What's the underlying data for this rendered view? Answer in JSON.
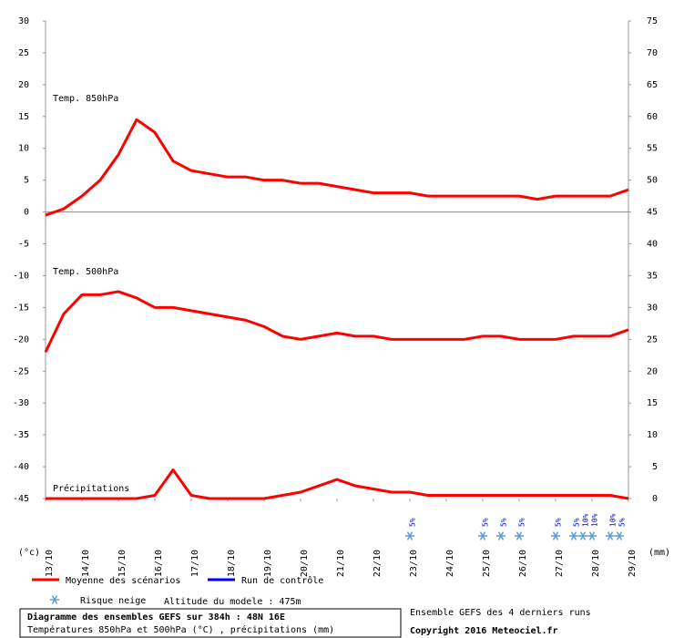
{
  "chart_data": {
    "type": "line",
    "ylabel": "(°c)",
    "y2label": "(mm)",
    "xlim": [
      0,
      384
    ],
    "xticks": [
      {
        "value": 0,
        "label": "13/10"
      },
      {
        "value": 24,
        "label": "14/10"
      },
      {
        "value": 48,
        "label": "15/10"
      },
      {
        "value": 72,
        "label": "16/10"
      },
      {
        "value": 96,
        "label": "17/10"
      },
      {
        "value": 120,
        "label": "18/10"
      },
      {
        "value": 144,
        "label": "19/10"
      },
      {
        "value": 168,
        "label": "20/10"
      },
      {
        "value": 192,
        "label": "21/10"
      },
      {
        "value": 216,
        "label": "22/10"
      },
      {
        "value": 240,
        "label": "23/10"
      },
      {
        "value": 264,
        "label": "24/10"
      },
      {
        "value": 288,
        "label": "25/10"
      },
      {
        "value": 312,
        "label": "26/10"
      },
      {
        "value": 336,
        "label": "27/10"
      },
      {
        "value": 360,
        "label": "28/10"
      },
      {
        "value": 384,
        "label": "29/10"
      }
    ],
    "ylim": [
      -45,
      30
    ],
    "yticks": [
      30,
      25,
      20,
      15,
      10,
      5,
      0,
      -5,
      -10,
      -15,
      -20,
      -25,
      -30,
      -35,
      -40,
      -45
    ],
    "y2lim": [
      0,
      75
    ],
    "y2ticks": [
      75,
      70,
      65,
      60,
      55,
      50,
      45,
      40,
      35,
      30,
      25,
      20,
      15,
      10,
      5,
      0
    ],
    "x": [
      0,
      12,
      24,
      36,
      48,
      60,
      72,
      84,
      96,
      108,
      120,
      132,
      144,
      156,
      168,
      180,
      192,
      204,
      216,
      228,
      240,
      252,
      264,
      276,
      288,
      300,
      312,
      324,
      336,
      348,
      360,
      372,
      384
    ],
    "series": [
      {
        "label": "Temp. 850hPa",
        "color": "#ff0000",
        "values": [
          -0.5,
          0.5,
          2.5,
          5,
          9,
          14.5,
          12.5,
          8,
          6.5,
          6,
          5.5,
          5.5,
          5,
          5,
          4.5,
          4.5,
          4,
          3.5,
          3,
          3,
          3,
          2.5,
          2.5,
          2.5,
          2.5,
          2.5,
          2.5,
          2,
          2.5,
          2.5,
          2.5,
          2.5,
          3.5
        ]
      },
      {
        "label": "Temp. 500hPa",
        "color": "#ff0000",
        "values": [
          -22,
          -16,
          -13,
          -13,
          -12.5,
          -13.5,
          -15,
          -15,
          -15.5,
          -16,
          -16.5,
          -17,
          -18,
          -19.5,
          -20,
          -19.5,
          -19,
          -19.5,
          -19.5,
          -20,
          -20,
          -20,
          -20,
          -20,
          -19.5,
          -19.5,
          -20,
          -20,
          -20,
          -19.5,
          -19.5,
          -19.5,
          -18.5
        ]
      },
      {
        "label": "Précipitations",
        "color": "#ff0000",
        "axis": "y2",
        "values": [
          0,
          0,
          0,
          0,
          0,
          0,
          0.5,
          4.5,
          0.5,
          0,
          0,
          0,
          0,
          0.5,
          1,
          2,
          3,
          2,
          1.5,
          1,
          1,
          0.5,
          0.5,
          0.5,
          0.5,
          0.5,
          0.5,
          0.5,
          0.5,
          0.5,
          0.5,
          0.5,
          0
        ]
      }
    ],
    "legend": [
      {
        "name": "Moyenne des scénarios",
        "color": "#ff0000"
      },
      {
        "name": "Run de contrôle",
        "color": "#0000ff"
      }
    ],
    "snow_risk": {
      "label": "Risque neige",
      "color": "#5aa0dc",
      "x": [
        240,
        288,
        300,
        312,
        336,
        348,
        354,
        360,
        372,
        378
      ],
      "values": [
        5,
        5,
        5,
        5,
        5,
        5,
        10,
        10,
        10,
        5
      ],
      "value_labels": [
        "5%",
        "5%",
        "5%",
        "5%",
        "5%",
        "5%",
        "10%",
        "10%",
        "10%",
        "5%"
      ]
    },
    "altitude": "Altitude du modele : 475m",
    "title": "Diagramme des ensembles GEFS sur 384h : 48N 16E",
    "subtitle": "Températures 850hPa et 500hPa (°C) , précipitations (mm)",
    "source": "Ensemble GEFS des 4 derniers runs",
    "copyright": "Copyright 2016 Meteociel.fr"
  }
}
